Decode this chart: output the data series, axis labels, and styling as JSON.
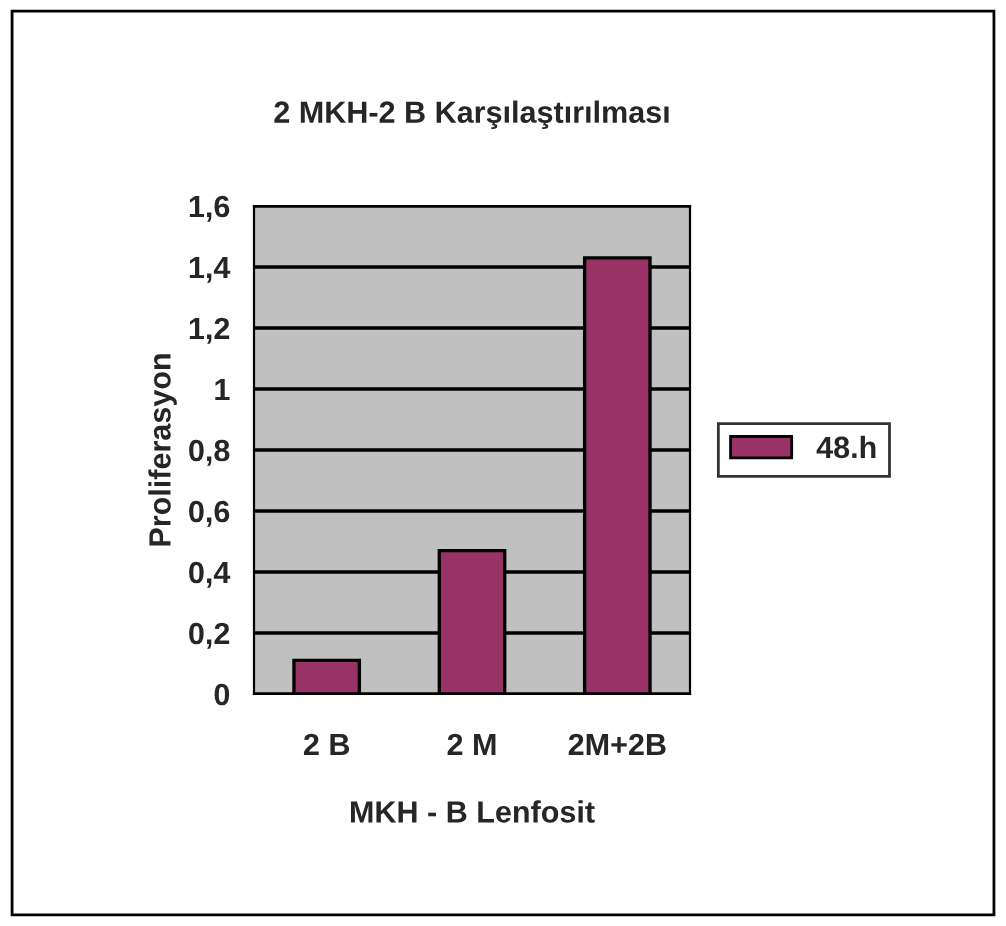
{
  "chart_data": {
    "type": "bar",
    "title": "2 MKH-2 B Karşılaştırılması",
    "xlabel": "MKH - B Lenfosit",
    "ylabel": "Proliferasyon",
    "categories": [
      "2 B",
      "2 M",
      "2M+2B"
    ],
    "series": [
      {
        "name": "48.h",
        "color": "#993366",
        "values": [
          0.11,
          0.47,
          1.43
        ]
      }
    ],
    "ylim": [
      0,
      1.6
    ],
    "yticks": [
      0,
      {
        "value": 0.2,
        "label": "0,2"
      },
      {
        "value": 0.4,
        "label": "0,4"
      },
      {
        "value": 0.6,
        "label": "0,6"
      },
      {
        "value": 0.8,
        "label": "0,8"
      },
      1,
      {
        "value": 1.2,
        "label": "1,2"
      },
      {
        "value": 1.4,
        "label": "1,4"
      },
      {
        "value": 1.6,
        "label": "1,6"
      }
    ],
    "grid": "y",
    "legend": "right"
  }
}
